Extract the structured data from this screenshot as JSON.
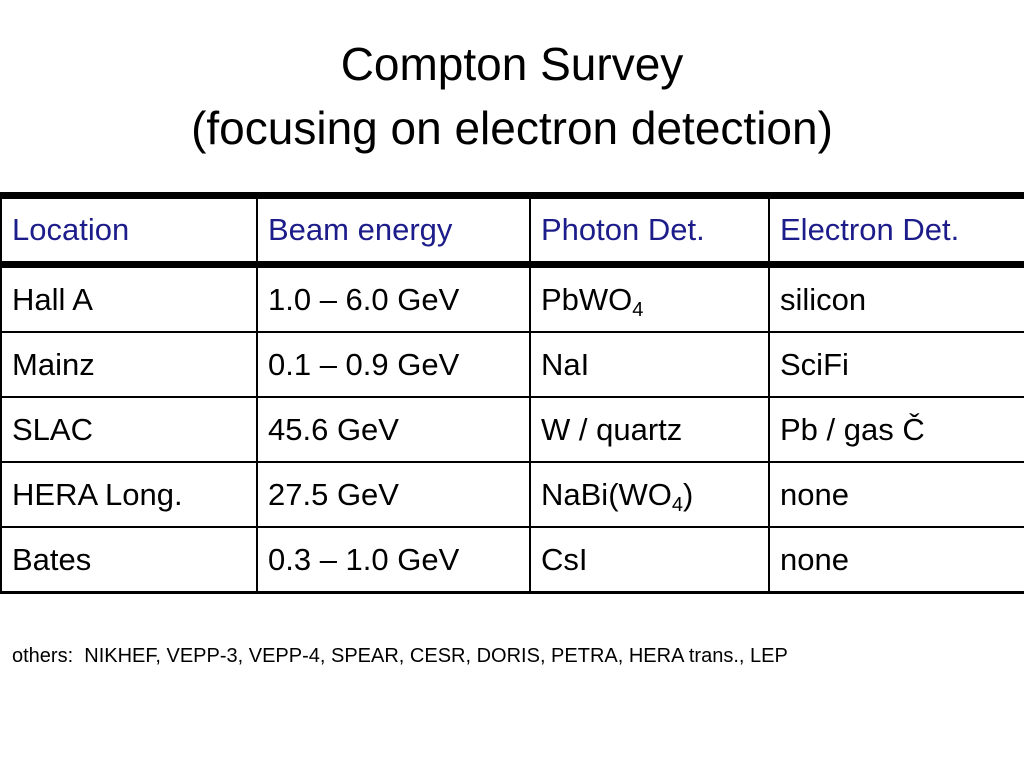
{
  "title": {
    "line1": "Compton Survey",
    "line2": "(focusing on electron detection)"
  },
  "table": {
    "headers": [
      "Location",
      "Beam energy",
      "Photon Det.",
      "Electron Det."
    ],
    "rows": [
      {
        "location": "Hall A",
        "beam_energy": "1.0 – 6.0 GeV",
        "photon_det": {
          "text": "PbWO",
          "sub": "4",
          "tail": ""
        },
        "electron_det": "silicon"
      },
      {
        "location": "Mainz",
        "beam_energy": "0.1 – 0.9 GeV",
        "photon_det": {
          "text": "NaI",
          "sub": "",
          "tail": ""
        },
        "electron_det": "SciFi"
      },
      {
        "location": "SLAC",
        "beam_energy": "45.6 GeV",
        "photon_det": {
          "text": "W / quartz",
          "sub": "",
          "tail": ""
        },
        "electron_det": "Pb / gas Č"
      },
      {
        "location": "HERA Long.",
        "beam_energy": "27.5 GeV",
        "photon_det": {
          "text": "NaBi(WO",
          "sub": "4",
          "tail": ")"
        },
        "electron_det": "none"
      },
      {
        "location": "Bates",
        "beam_energy": "0.3 – 1.0 GeV",
        "photon_det": {
          "text": "CsI",
          "sub": "",
          "tail": ""
        },
        "electron_det": "none"
      }
    ]
  },
  "others": "others:  NIKHEF, VEPP-3, VEPP-4, SPEAR, CESR, DORIS, PETRA, HERA trans., LEP",
  "colors": {
    "header_text": "#1c1c8a",
    "body_text": "#000000",
    "border": "#000000"
  }
}
